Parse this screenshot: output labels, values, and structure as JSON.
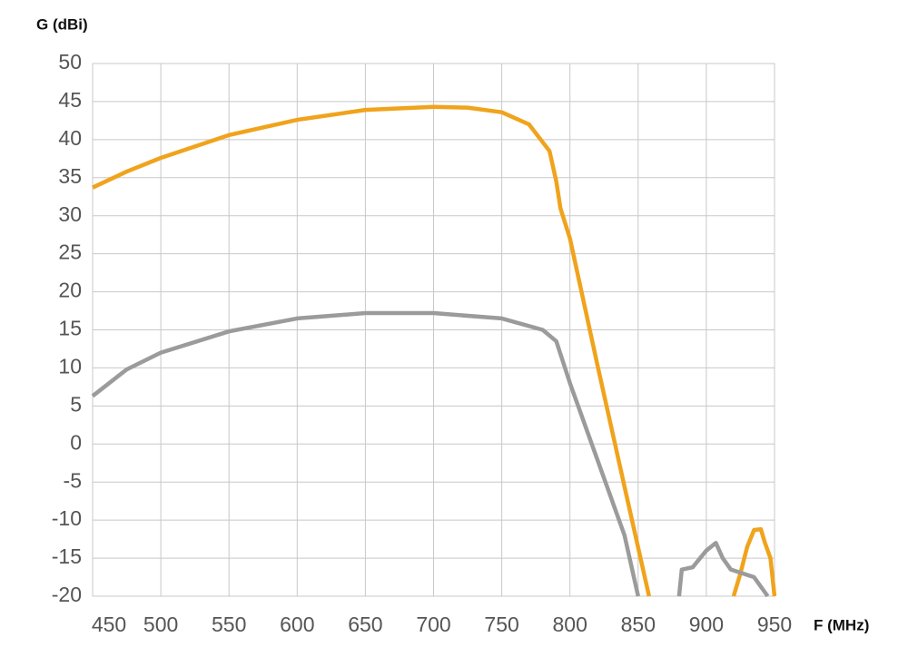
{
  "chart_data": {
    "type": "line",
    "y_label": "G (dBi)",
    "x_label": "F (MHz)",
    "xlim": [
      450,
      950
    ],
    "xticks": [
      450,
      500,
      550,
      600,
      650,
      700,
      750,
      800,
      850,
      900,
      950
    ],
    "ylim": [
      -20,
      50
    ],
    "yticks": [
      -20,
      -15,
      -10,
      -5,
      0,
      5,
      10,
      15,
      20,
      25,
      30,
      35,
      40,
      45,
      50
    ],
    "grid": true,
    "series": [
      {
        "color": "#f0a31c",
        "x": [
          450,
          475,
          500,
          550,
          600,
          650,
          700,
          725,
          750,
          770,
          785,
          790,
          793,
          800,
          820,
          840,
          850,
          858,
          null,
          920,
          925,
          930,
          935,
          940,
          943,
          947,
          950
        ],
        "values": [
          33.7,
          35.8,
          37.6,
          40.6,
          42.6,
          43.9,
          44.3,
          44.2,
          43.6,
          42,
          38.5,
          34.5,
          31,
          27,
          10.5,
          -5.6,
          -13.6,
          -20,
          null,
          -20,
          -17,
          -13.5,
          -11.3,
          -11.2,
          -13,
          -15,
          -20
        ]
      },
      {
        "color": "#9b9b9b",
        "x": [
          450,
          475,
          500,
          550,
          600,
          650,
          700,
          750,
          780,
          790,
          800,
          820,
          840,
          850,
          null,
          880,
          882,
          890,
          900,
          907,
          912,
          918,
          935,
          945
        ],
        "values": [
          6.3,
          9.8,
          12,
          14.8,
          16.5,
          17.2,
          17.2,
          16.5,
          15,
          13.5,
          8,
          -2,
          -12,
          -20,
          null,
          -20,
          -16.5,
          -16.2,
          -14,
          -13,
          -15,
          -16.5,
          -17.5,
          -20
        ]
      }
    ]
  }
}
